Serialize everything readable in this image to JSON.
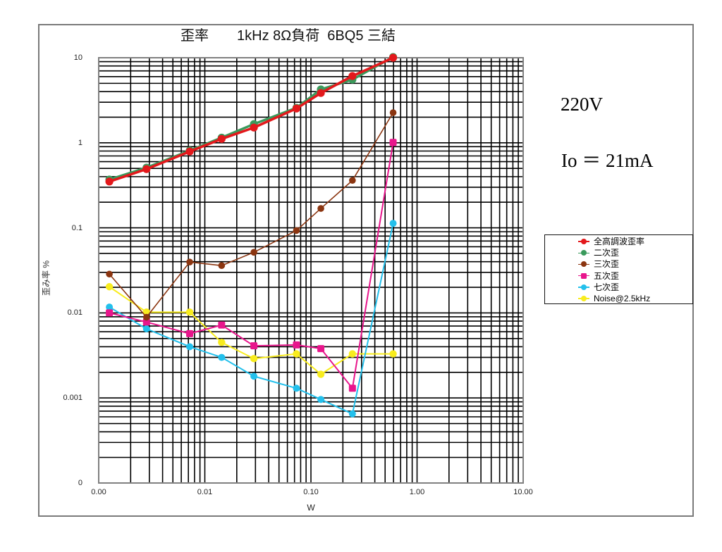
{
  "chart_data": {
    "type": "line",
    "title": "歪率　　1kHz 8Ω負荷  6BQ5 三結",
    "xlabel": "W",
    "ylabel": "歪み率 %",
    "xscale": "log",
    "yscale": "log",
    "xlim": [
      0.001,
      10
    ],
    "ylim": [
      0.0001,
      10
    ],
    "x_tick_values": [
      0.001,
      0.01,
      0.1,
      1,
      10
    ],
    "x_tick_labels": [
      "0.00",
      "0.01",
      "0.10",
      "1.00",
      "10.00"
    ],
    "y_tick_values": [
      10,
      1,
      0.1,
      0.01,
      0.001,
      0.0001
    ],
    "y_tick_labels": [
      "10",
      "1",
      "0.1",
      "0.01",
      "0.001",
      "0"
    ],
    "grid": true,
    "legend_position": "right",
    "x": [
      0.00126,
      0.00282,
      0.0072,
      0.0144,
      0.029,
      0.073,
      0.124,
      0.246,
      0.595
    ],
    "series": [
      {
        "name": "全高調波歪率",
        "color": "#e3191c",
        "marker": "circle",
        "values": [
          0.35,
          0.49,
          0.79,
          1.11,
          1.51,
          2.53,
          3.85,
          6.09,
          10.0
        ]
      },
      {
        "name": "二次歪",
        "color": "#3a9a5c",
        "marker": "circle",
        "values": [
          0.37,
          0.51,
          0.81,
          1.15,
          1.66,
          2.58,
          4.24,
          5.54,
          10.2
        ]
      },
      {
        "name": "三次歪",
        "color": "#8b3510",
        "marker": "circle",
        "values": [
          0.0286,
          0.0089,
          0.0396,
          0.036,
          0.0516,
          0.093,
          0.169,
          0.361,
          2.26
        ]
      },
      {
        "name": "五次歪",
        "color": "#e8168c",
        "marker": "square",
        "values": [
          0.01,
          0.0078,
          0.0057,
          0.0072,
          0.0041,
          0.0042,
          0.0038,
          0.0013,
          1.01
        ]
      },
      {
        "name": "七次歪",
        "color": "#23c0ec",
        "marker": "circle",
        "values": [
          0.0117,
          0.0065,
          0.004,
          0.003,
          0.0018,
          0.0013,
          0.00096,
          0.00065,
          0.113
        ]
      },
      {
        "name": "Noise@2.5kHz",
        "color": "#f8ec1e",
        "marker": "circle",
        "values": [
          0.0203,
          0.0102,
          0.0102,
          0.0045,
          0.0029,
          0.0033,
          0.0019,
          0.0033,
          0.0033
        ]
      }
    ],
    "annotations": [
      "220V",
      "Io ＝ 21mA"
    ]
  }
}
